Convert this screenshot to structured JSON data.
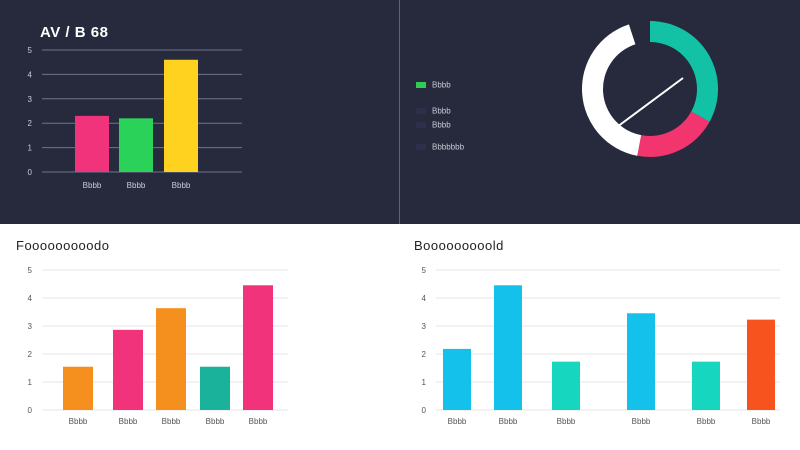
{
  "charts": {
    "top_left": {
      "title": "AV / B 68"
    },
    "bottom_left": {
      "title": "Fooooooooodo"
    },
    "bottom_right": {
      "title": "Booooooooold"
    },
    "legend": [
      {
        "label": "Bbbb",
        "color": "#2ecc55"
      },
      {
        "label": "Bbbb",
        "color": "#2c304a"
      },
      {
        "label": "Bbbb",
        "color": "#2c304a"
      },
      {
        "label": "Bbbbbbb",
        "color": "#2c304a"
      }
    ]
  },
  "chart_data": [
    {
      "id": "top_left",
      "type": "bar",
      "title": "AV / B 68",
      "categories": [
        "Bbbb",
        "Bbbb",
        "Bbbb"
      ],
      "values": [
        46,
        44,
        92
      ],
      "colors": [
        "#f0337a",
        "#2bd25a",
        "#ffd21f"
      ],
      "yticks": [
        "5",
        "4",
        "3",
        "2",
        "1",
        "0"
      ],
      "ylim": [
        0,
        100
      ],
      "grid": true
    },
    {
      "id": "donut",
      "type": "pie",
      "title": "",
      "categories": [
        "Teal",
        "Pink",
        "White",
        "Dark"
      ],
      "values": [
        33,
        20,
        42,
        5
      ],
      "colors": [
        "#13c2a5",
        "#f2356f",
        "#ffffff",
        "#262a3c"
      ],
      "legend": "left"
    },
    {
      "id": "bottom_left",
      "type": "bar",
      "title": "Fooooooooodo",
      "categories": [
        "Bbbb",
        "Bbbb",
        "Bbbb",
        "Bbbb",
        "Bbbb"
      ],
      "values": [
        34,
        63,
        80,
        34,
        98
      ],
      "colors": [
        "#f5901e",
        "#f0337a",
        "#f5901e",
        "#1ab29b",
        "#f0337a"
      ],
      "yticks": [
        "5",
        "4",
        "3",
        "2",
        "1",
        "0"
      ],
      "ylim": [
        0,
        110
      ],
      "grid": true
    },
    {
      "id": "bottom_right",
      "type": "bar",
      "title": "Booooooooold",
      "categories": [
        "Bbbb",
        "Bbbb",
        "Bbbb",
        "Bbbb",
        "Bbbb",
        "Bbbb"
      ],
      "values": [
        48,
        98,
        38,
        76,
        38,
        71
      ],
      "colors": [
        "#14c1ea",
        "#14c1ea",
        "#17d6c0",
        "#14c1ea",
        "#17d6c0",
        "#f7531e"
      ],
      "yticks": [
        "5",
        "4",
        "3",
        "2",
        "1",
        "0"
      ],
      "ylim": [
        0,
        110
      ],
      "grid": true
    }
  ]
}
